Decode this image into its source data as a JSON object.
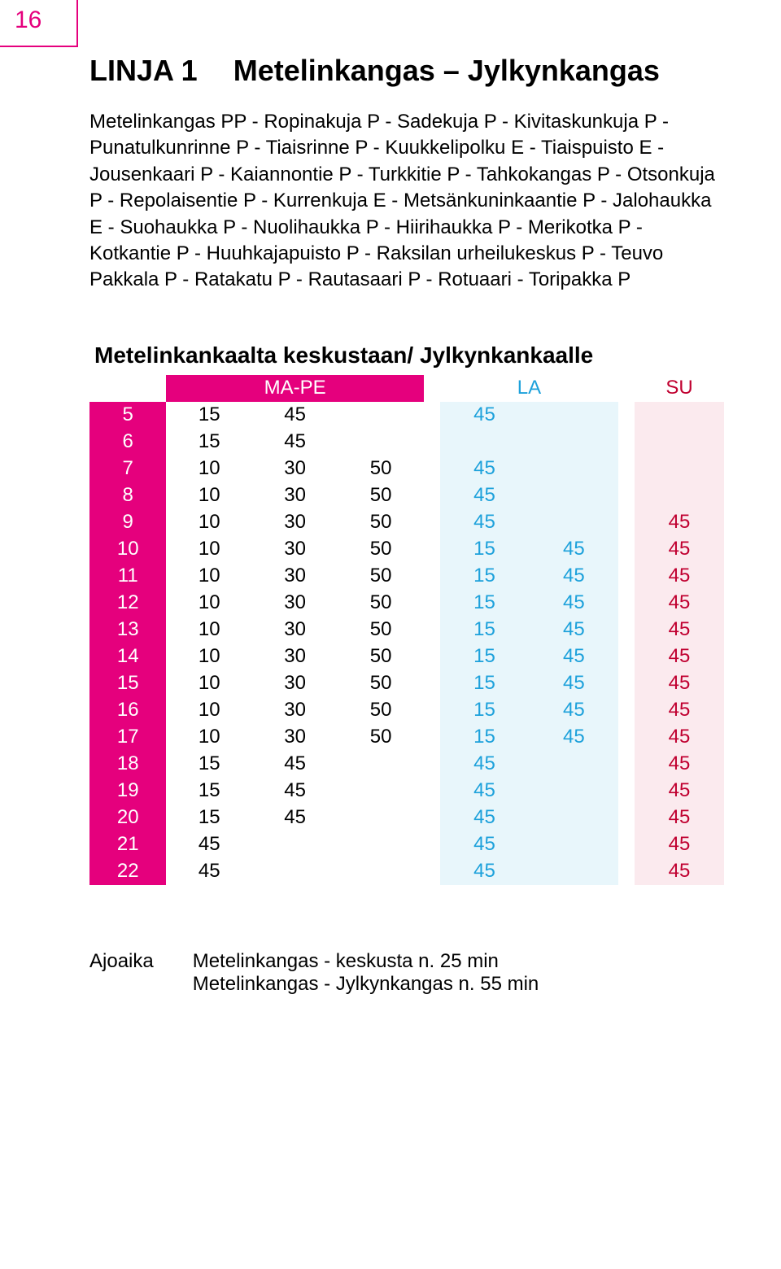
{
  "page_number": "16",
  "header": {
    "line_label": "LINJA 1",
    "route_name": "Metelinkangas – Jylkynkangas"
  },
  "route_description": "Metelinkangas PP - Ropinakuja P - Sadekuja P - Kivitaskunkuja P - Punatulkunrinne P - Tiaisrinne P - Kuukkelipolku E - Tiaispuisto E - Jousenkaari P - Kaiannontie P - Turkkitie P - Tahkokangas P - Otsonkuja P - Repolaisentie P - Kurrenkuja E - Metsänkuninkaantie P - Jalohaukka E - Suohaukka P - Nuolihaukka P - Hiirihaukka P - Merikotka P - Kotkantie P - Huuhkajapuisto P - Raksilan urheilukeskus P - Teuvo Pakkala P - Ratakatu P - Rautasaari P - Rotuaari - Toripakka P",
  "section_title": "Metelinkankaalta keskustaan/ Jylkynkankaalle",
  "columns": {
    "mape": "MA-PE",
    "la": "LA",
    "su": "SU"
  },
  "rows": [
    {
      "hour": "5",
      "mp": [
        "15",
        "45",
        ""
      ],
      "la": [
        "45",
        ""
      ],
      "su": [
        ""
      ]
    },
    {
      "hour": "6",
      "mp": [
        "15",
        "45",
        ""
      ],
      "la": [
        "",
        ""
      ],
      "su": [
        ""
      ]
    },
    {
      "hour": "7",
      "mp": [
        "10",
        "30",
        "50"
      ],
      "la": [
        "45",
        ""
      ],
      "su": [
        ""
      ]
    },
    {
      "hour": "8",
      "mp": [
        "10",
        "30",
        "50"
      ],
      "la": [
        "45",
        ""
      ],
      "su": [
        ""
      ]
    },
    {
      "hour": "9",
      "mp": [
        "10",
        "30",
        "50"
      ],
      "la": [
        "45",
        ""
      ],
      "su": [
        "45"
      ]
    },
    {
      "hour": "10",
      "mp": [
        "10",
        "30",
        "50"
      ],
      "la": [
        "15",
        "45"
      ],
      "su": [
        "45"
      ]
    },
    {
      "hour": "11",
      "mp": [
        "10",
        "30",
        "50"
      ],
      "la": [
        "15",
        "45"
      ],
      "su": [
        "45"
      ]
    },
    {
      "hour": "12",
      "mp": [
        "10",
        "30",
        "50"
      ],
      "la": [
        "15",
        "45"
      ],
      "su": [
        "45"
      ]
    },
    {
      "hour": "13",
      "mp": [
        "10",
        "30",
        "50"
      ],
      "la": [
        "15",
        "45"
      ],
      "su": [
        "45"
      ]
    },
    {
      "hour": "14",
      "mp": [
        "10",
        "30",
        "50"
      ],
      "la": [
        "15",
        "45"
      ],
      "su": [
        "45"
      ]
    },
    {
      "hour": "15",
      "mp": [
        "10",
        "30",
        "50"
      ],
      "la": [
        "15",
        "45"
      ],
      "su": [
        "45"
      ]
    },
    {
      "hour": "16",
      "mp": [
        "10",
        "30",
        "50"
      ],
      "la": [
        "15",
        "45"
      ],
      "su": [
        "45"
      ]
    },
    {
      "hour": "17",
      "mp": [
        "10",
        "30",
        "50"
      ],
      "la": [
        "15",
        "45"
      ],
      "su": [
        "45"
      ]
    },
    {
      "hour": "18",
      "mp": [
        "15",
        "45",
        ""
      ],
      "la": [
        "45",
        ""
      ],
      "su": [
        "45"
      ]
    },
    {
      "hour": "19",
      "mp": [
        "15",
        "45",
        ""
      ],
      "la": [
        "45",
        ""
      ],
      "su": [
        "45"
      ]
    },
    {
      "hour": "20",
      "mp": [
        "15",
        "45",
        ""
      ],
      "la": [
        "45",
        ""
      ],
      "su": [
        "45"
      ]
    },
    {
      "hour": "21",
      "mp": [
        "45",
        "",
        ""
      ],
      "la": [
        "45",
        ""
      ],
      "su": [
        "45"
      ]
    },
    {
      "hour": "22",
      "mp": [
        "45",
        "",
        ""
      ],
      "la": [
        "45",
        ""
      ],
      "su": [
        "45"
      ]
    }
  ],
  "footer": {
    "label": "Ajoaika",
    "line1": "Metelinkangas - keskusta n. 25 min",
    "line2": "Metelinkangas - Jylkynkangas n. 55 min"
  },
  "style": {
    "accent": "#e5007d",
    "la_color": "#1da1db",
    "la_bg": "#e8f6fb",
    "su_color": "#c00030",
    "su_bg": "#fbeaee",
    "text_color": "#000000",
    "background": "#ffffff",
    "font_family": "Arial, Helvetica, sans-serif"
  }
}
